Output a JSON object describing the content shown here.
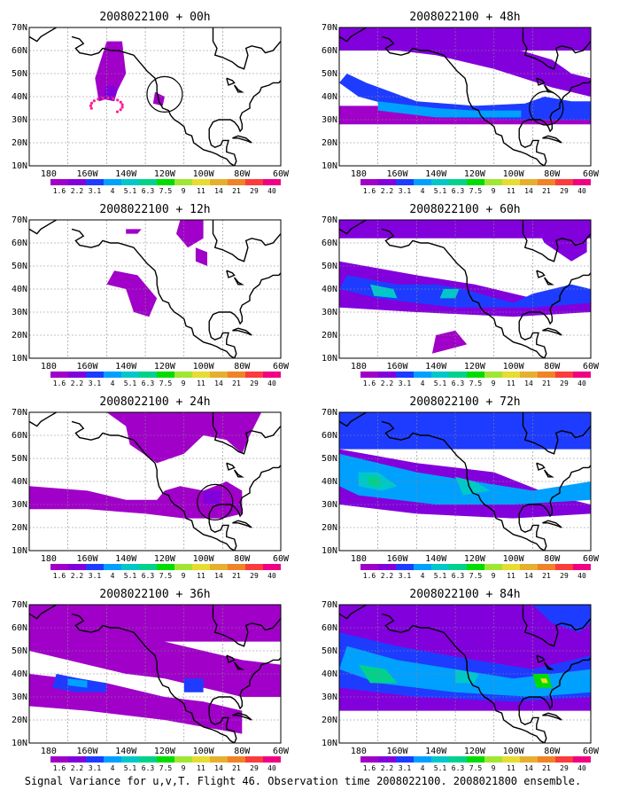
{
  "panels": [
    {
      "title": "2008022100 + 00h"
    },
    {
      "title": "2008022100 + 48h"
    },
    {
      "title": "2008022100 + 12h"
    },
    {
      "title": "2008022100 + 60h"
    },
    {
      "title": "2008022100 + 24h"
    },
    {
      "title": "2008022100 + 72h"
    },
    {
      "title": "2008022100 + 36h"
    },
    {
      "title": "2008022100 + 84h"
    }
  ],
  "lat_labels": [
    "70N",
    "60N",
    "50N",
    "40N",
    "30N",
    "20N",
    "10N"
  ],
  "lon_labels": [
    "180",
    "160W",
    "140W",
    "120W",
    "100W",
    "80W",
    "60W"
  ],
  "colorbar": {
    "labels": [
      "1.6",
      "2.2",
      "3.1",
      "4",
      "5.1",
      "6.3",
      "7.5",
      "9",
      "11",
      "14",
      "21",
      "29",
      "40"
    ],
    "colors": [
      "#a000c8",
      "#8200dc",
      "#1e3cff",
      "#00a0ff",
      "#00c8c8",
      "#00d28c",
      "#00dc00",
      "#a0e632",
      "#e6dc32",
      "#e6af2d",
      "#f08228",
      "#fa3c3c",
      "#f00082"
    ]
  },
  "caption": "Signal Variance for u,v,T. Flight 46. Observation time 2008022100. 2008021800 ensemble."
}
